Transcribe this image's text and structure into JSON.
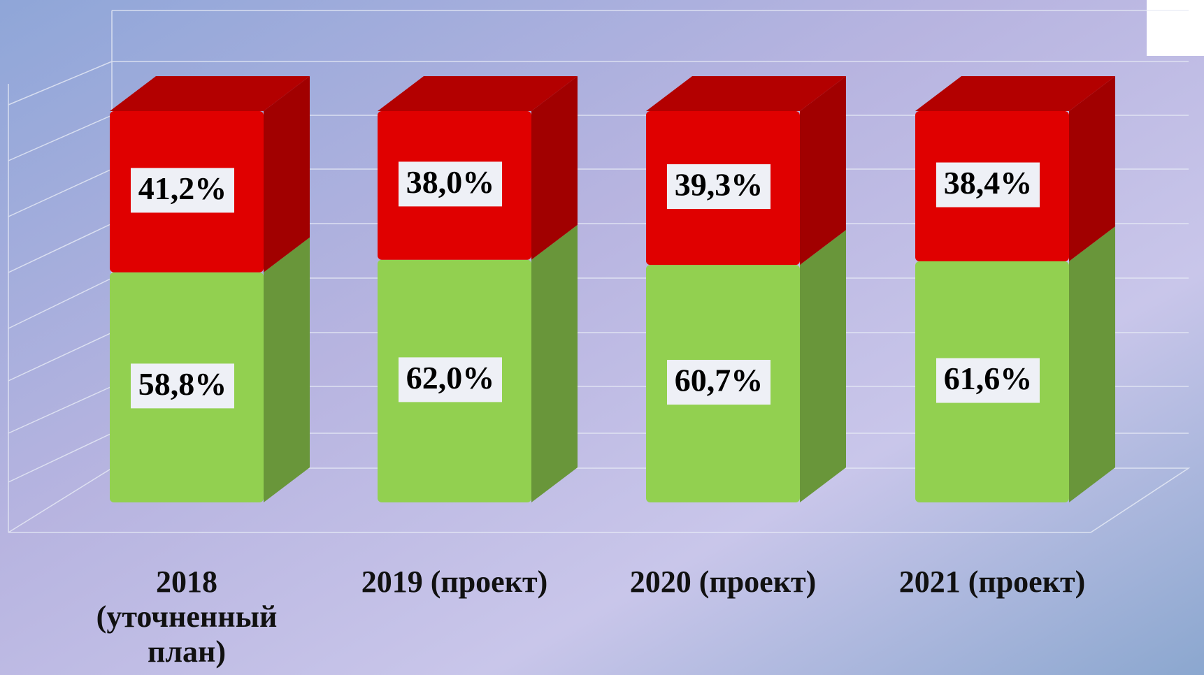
{
  "chart_data": {
    "type": "stacked-bar",
    "categories": [
      "2018 (уточненный план)",
      "2019 (проект)",
      "2020 (проект)",
      "2021 (проект)"
    ],
    "series": [
      {
        "color": "#92d050",
        "values": [
          58.8,
          62.0,
          60.7,
          61.6
        ],
        "value_labels": [
          "58,8%",
          "62,0%",
          "60,7%",
          "61,6%"
        ]
      },
      {
        "color": "#e00000",
        "values": [
          41.2,
          38.0,
          39.3,
          38.4
        ],
        "value_labels": [
          "41,2%",
          "38,0%",
          "39,3%",
          "38,4%"
        ]
      }
    ]
  }
}
